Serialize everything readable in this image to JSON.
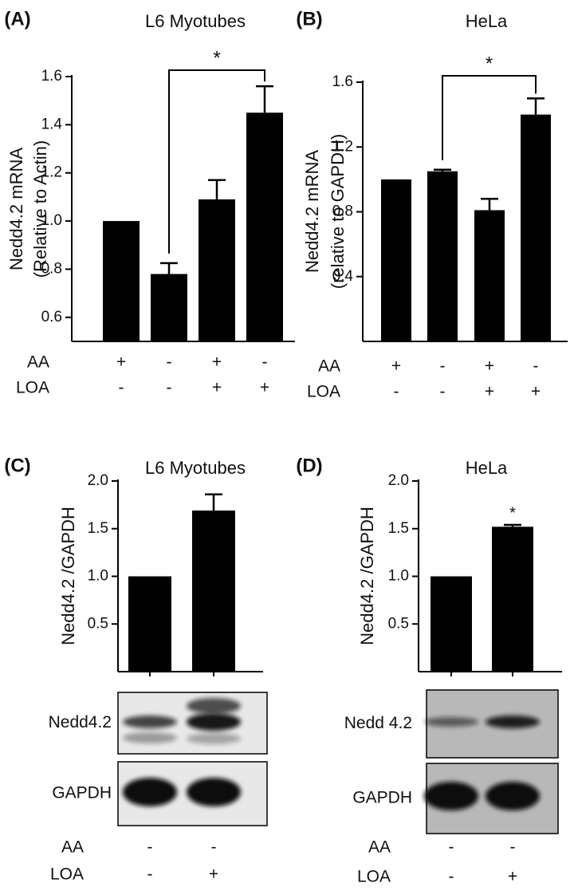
{
  "chart_data": [
    {
      "type": "bar",
      "panel": "(A)",
      "title": "L6 Myotubes",
      "ylabel": [
        "Nedd4.2 mRNA",
        "(Relative to Actin)"
      ],
      "values": [
        1.0,
        0.78,
        1.09,
        1.45
      ],
      "errors": [
        0,
        0.045,
        0.08,
        0.11
      ],
      "color": "#000000",
      "ylim": [
        0.5,
        1.6
      ],
      "yticks": [
        0.6,
        0.8,
        {
          "value": 1.0,
          "label": "1.0"
        },
        1.2,
        1.4,
        1.6
      ],
      "conditions": [
        {
          "name": "AA",
          "values": [
            "+",
            "-",
            "+",
            "-"
          ]
        },
        {
          "name": "LOA",
          "values": [
            "-",
            "-",
            "+",
            "+"
          ]
        }
      ],
      "significance": [
        {
          "text": "*",
          "bars": [
            1,
            3
          ]
        }
      ]
    },
    {
      "type": "bar",
      "panel": "(B)",
      "title": "HeLa",
      "ylabel": [
        "Nedd4.2 mRNA",
        "(relative to GAPDH)"
      ],
      "values": [
        1.0,
        1.05,
        0.81,
        1.4
      ],
      "errors": [
        0,
        0.01,
        0.07,
        0.1
      ],
      "color": "#000000",
      "ylim": [
        0,
        1.6
      ],
      "yticks": [
        0.4,
        0.8,
        1.2,
        1.6
      ],
      "conditions": [
        {
          "name": "AA",
          "values": [
            "+",
            "-",
            "+",
            "-"
          ]
        },
        {
          "name": "LOA",
          "values": [
            "-",
            "-",
            "+",
            "+"
          ]
        }
      ],
      "significance": [
        {
          "text": "*",
          "bars": [
            1,
            3
          ]
        }
      ]
    },
    {
      "type": "bar",
      "panel": "(C)",
      "title": "L6 Myotubes",
      "ylabel": [
        "Nedd4.2 /GAPDH"
      ],
      "values": [
        1.0,
        1.69
      ],
      "errors": [
        0,
        0.17
      ],
      "color": "#000000",
      "ylim": [
        0,
        2.0
      ],
      "yticks": [
        0.5,
        {
          "value": 1.0,
          "label": "1.0"
        },
        1.5,
        {
          "value": 2.0,
          "label": "2.0"
        }
      ],
      "blots": [
        "Nedd4.2",
        "GAPDH"
      ],
      "conditions": [
        {
          "name": "AA",
          "values": [
            "-",
            "-"
          ]
        },
        {
          "name": "LOA",
          "values": [
            "-",
            "+"
          ]
        }
      ]
    },
    {
      "type": "bar",
      "panel": "(D)",
      "title": "HeLa",
      "ylabel": [
        "Nedd4.2 /GAPDH"
      ],
      "values": [
        1.0,
        1.52
      ],
      "errors": [
        0,
        0.02
      ],
      "color": "#000000",
      "ylim": [
        0,
        2.0
      ],
      "yticks": [
        0.5,
        {
          "value": 1.0,
          "label": "1.0"
        },
        1.5,
        {
          "value": 2.0,
          "label": "2.0"
        }
      ],
      "blots": [
        "Nedd 4.2",
        "GAPDH"
      ],
      "bar_annotations": [
        null,
        "*"
      ],
      "conditions": [
        {
          "name": "AA",
          "values": [
            "-",
            "-"
          ]
        },
        {
          "name": "LOA",
          "values": [
            "-",
            "+"
          ]
        }
      ]
    }
  ]
}
